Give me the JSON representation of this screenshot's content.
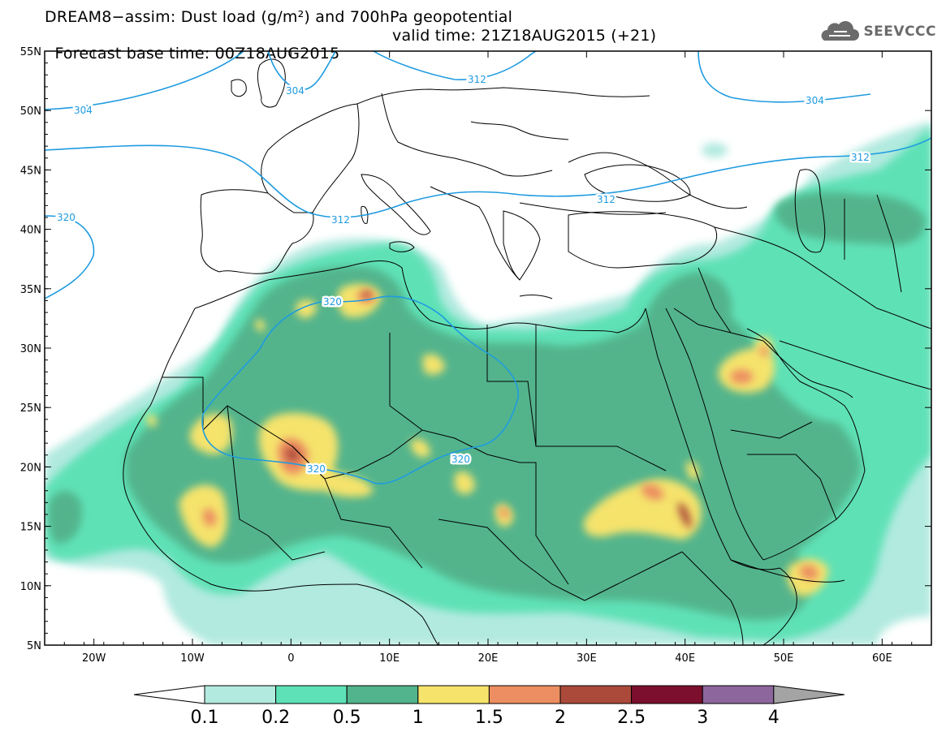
{
  "title": {
    "line1": "DREAM8−assim: Dust load (g/m²) and 700hPa geopotential",
    "base": "Forecast base time: 00Z18AUG2015",
    "valid": "valid time: 21Z18AUG2015 (+21)"
  },
  "logo": {
    "text": "SEEVCCC",
    "icon": "cloud-logo-icon",
    "color": "#6b6b6b"
  },
  "axes": {
    "lat_labels": [
      "55N",
      "50N",
      "45N",
      "40N",
      "35N",
      "30N",
      "25N",
      "20N",
      "15N",
      "10N",
      "5N"
    ],
    "lon_labels": [
      "20W",
      "10W",
      "0",
      "10E",
      "20E",
      "30E",
      "40E",
      "50E",
      "60E"
    ]
  },
  "contours": {
    "color": "#1f9be0",
    "labels": [
      "304",
      "304",
      "304",
      "312",
      "312",
      "312",
      "312",
      "320",
      "320",
      "320",
      "320"
    ]
  },
  "colorbar": {
    "labels": [
      "0.1",
      "0.2",
      "0.5",
      "1",
      "1.5",
      "2",
      "2.5",
      "3",
      "4"
    ],
    "colors": [
      "#ffffff",
      "#b2eadf",
      "#5ee1b6",
      "#52b48c",
      "#f5e36c",
      "#ec8e61",
      "#ab4a3b",
      "#7b0f2d",
      "#8c669c",
      "#a4a4a4"
    ]
  }
}
